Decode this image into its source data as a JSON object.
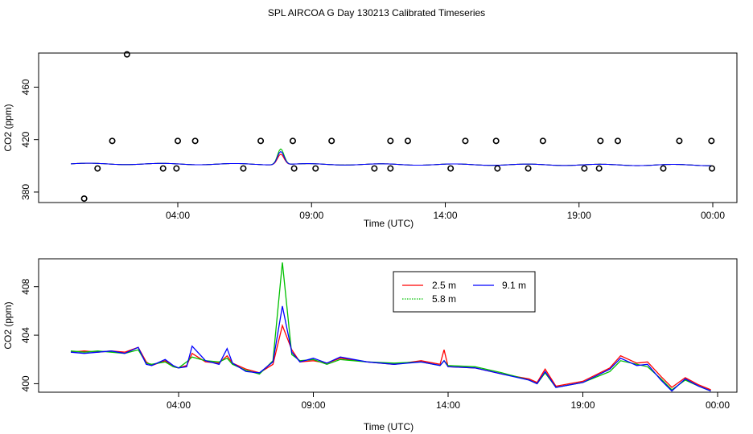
{
  "title": "SPL AIRCOA G  Day 130213  Calibrated Timeseries",
  "chart_data": [
    {
      "type": "scatter+line",
      "xlabel": "Time (UTC)",
      "ylabel": "CO2 (ppm)",
      "xlim": [
        0,
        24
      ],
      "ylim": [
        372,
        486
      ],
      "x_ticks": [
        {
          "label": "04:00",
          "value": 4
        },
        {
          "label": "09:00",
          "value": 9
        },
        {
          "label": "14:00",
          "value": 14
        },
        {
          "label": "19:00",
          "value": 19
        },
        {
          "label": "00:00",
          "value": 24
        }
      ],
      "y_ticks": [
        380,
        420,
        460
      ],
      "points": [
        {
          "x": 0.5,
          "y": 375
        },
        {
          "x": 1.0,
          "y": 398
        },
        {
          "x": 1.55,
          "y": 419
        },
        {
          "x": 2.1,
          "y": 485
        },
        {
          "x": 3.45,
          "y": 398
        },
        {
          "x": 3.95,
          "y": 398
        },
        {
          "x": 4.0,
          "y": 419
        },
        {
          "x": 4.65,
          "y": 419
        },
        {
          "x": 6.45,
          "y": 398
        },
        {
          "x": 7.1,
          "y": 419
        },
        {
          "x": 8.3,
          "y": 419
        },
        {
          "x": 8.35,
          "y": 398
        },
        {
          "x": 9.15,
          "y": 398
        },
        {
          "x": 9.75,
          "y": 419
        },
        {
          "x": 11.35,
          "y": 398
        },
        {
          "x": 11.95,
          "y": 419
        },
        {
          "x": 11.95,
          "y": 398
        },
        {
          "x": 12.6,
          "y": 419
        },
        {
          "x": 14.2,
          "y": 398
        },
        {
          "x": 14.75,
          "y": 419
        },
        {
          "x": 15.9,
          "y": 419
        },
        {
          "x": 15.95,
          "y": 398
        },
        {
          "x": 17.1,
          "y": 398
        },
        {
          "x": 17.65,
          "y": 419
        },
        {
          "x": 19.2,
          "y": 398
        },
        {
          "x": 19.75,
          "y": 398
        },
        {
          "x": 19.8,
          "y": 419
        },
        {
          "x": 20.45,
          "y": 419
        },
        {
          "x": 22.15,
          "y": 398
        },
        {
          "x": 22.75,
          "y": 419
        },
        {
          "x": 23.95,
          "y": 419
        },
        {
          "x": 23.97,
          "y": 398
        }
      ],
      "lines": [
        {
          "name": "2.5 m",
          "color": "#ff0000",
          "bump": 8
        },
        {
          "name": "5.8 m",
          "color": "#00c000",
          "bump": 12
        },
        {
          "name": "9.1 m",
          "color": "#0000ff",
          "bump": 10
        }
      ]
    },
    {
      "type": "line",
      "xlabel": "Time (UTC)",
      "ylabel": "CO2 (ppm)",
      "xlim": [
        0,
        24
      ],
      "ylim": [
        399.3,
        410.3
      ],
      "x_ticks": [
        {
          "label": "04:00",
          "value": 4
        },
        {
          "label": "09:00",
          "value": 9
        },
        {
          "label": "14:00",
          "value": 14
        },
        {
          "label": "19:00",
          "value": 19
        },
        {
          "label": "00:00",
          "value": 24
        }
      ],
      "y_ticks": [
        400,
        404,
        408
      ],
      "legend": {
        "placement": "top-center",
        "entries": [
          {
            "name": "2.5 m",
            "color": "#ff0000"
          },
          {
            "name": "9.1 m",
            "color": "#0000ff"
          },
          {
            "name": "5.8 m",
            "color": "#00c000"
          }
        ]
      },
      "x": [
        0,
        0.5,
        1.0,
        1.5,
        2.0,
        2.5,
        2.8,
        3.0,
        3.5,
        3.8,
        4.0,
        4.3,
        4.5,
        5.0,
        5.5,
        5.8,
        6.0,
        6.5,
        7.0,
        7.5,
        7.85,
        8.2,
        8.5,
        9.0,
        9.5,
        10.0,
        11.0,
        12.0,
        13.0,
        13.7,
        13.85,
        14.0,
        15.0,
        16.0,
        17.0,
        17.3,
        17.6,
        18.0,
        19.0,
        20.0,
        20.4,
        21.0,
        21.4,
        21.9,
        22.3,
        22.8,
        23.3,
        23.75
      ],
      "series": [
        {
          "name": "2.5 m",
          "color": "#ff0000",
          "values": [
            402.6,
            402.7,
            402.6,
            402.7,
            402.6,
            403.0,
            401.8,
            401.5,
            401.9,
            401.4,
            401.3,
            401.5,
            402.5,
            401.8,
            401.7,
            402.3,
            401.7,
            401.2,
            400.9,
            401.6,
            404.8,
            402.8,
            401.8,
            401.9,
            401.7,
            402.1,
            401.8,
            401.6,
            401.9,
            401.6,
            402.8,
            401.4,
            401.3,
            400.8,
            400.4,
            400.1,
            401.2,
            399.8,
            400.2,
            401.3,
            402.3,
            401.7,
            401.8,
            400.6,
            399.7,
            400.5,
            399.9,
            399.5
          ]
        },
        {
          "name": "5.8 m",
          "color": "#00c000",
          "values": [
            402.7,
            402.6,
            402.7,
            402.6,
            402.5,
            402.8,
            401.7,
            401.6,
            401.8,
            401.4,
            401.3,
            401.8,
            402.2,
            401.9,
            401.8,
            402.1,
            401.6,
            401.1,
            400.8,
            401.9,
            410.0,
            402.4,
            401.9,
            402.0,
            401.6,
            402.0,
            401.8,
            401.7,
            401.8,
            401.5,
            401.9,
            401.5,
            401.4,
            400.9,
            400.3,
            400.0,
            400.9,
            399.7,
            400.1,
            401.0,
            401.9,
            401.6,
            401.4,
            400.4,
            399.5,
            400.3,
            399.8,
            399.4
          ]
        },
        {
          "name": "9.1 m",
          "color": "#0000ff",
          "values": [
            402.6,
            402.5,
            402.6,
            402.7,
            402.5,
            403.0,
            401.6,
            401.5,
            402.0,
            401.5,
            401.3,
            401.4,
            403.1,
            401.9,
            401.6,
            402.9,
            401.7,
            401.0,
            400.9,
            401.8,
            406.4,
            402.6,
            401.8,
            402.1,
            401.7,
            402.2,
            401.8,
            401.6,
            401.8,
            401.5,
            401.9,
            401.4,
            401.3,
            400.8,
            400.3,
            400.0,
            401.0,
            399.7,
            400.1,
            401.2,
            402.1,
            401.5,
            401.6,
            400.3,
            399.4,
            400.4,
            399.8,
            399.4
          ]
        }
      ]
    }
  ]
}
